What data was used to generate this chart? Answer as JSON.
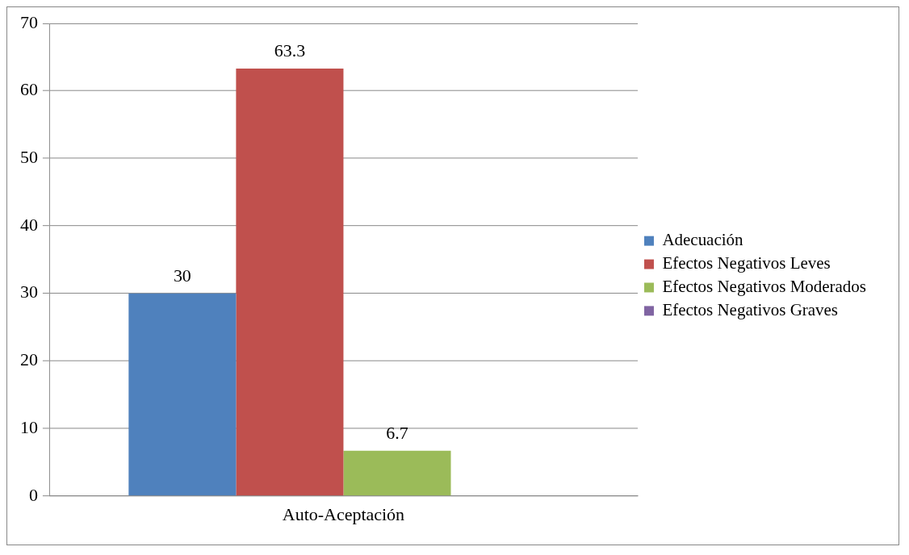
{
  "chart_data": {
    "type": "bar",
    "categories": [
      "Auto-Aceptación"
    ],
    "series": [
      {
        "name": "Adecuación",
        "color": "#4f81bd",
        "values": [
          30
        ],
        "value_labels": [
          "30"
        ]
      },
      {
        "name": "Efectos Negativos Leves",
        "color": "#c0504d",
        "values": [
          63.3
        ],
        "value_labels": [
          "63.3"
        ]
      },
      {
        "name": "Efectos Negativos Moderados",
        "color": "#9bbb59",
        "values": [
          6.7
        ],
        "value_labels": [
          "6.7"
        ]
      },
      {
        "name": "Efectos Negativos Graves",
        "color": "#8064a2",
        "values": [
          0
        ],
        "value_labels": [
          null
        ]
      }
    ],
    "ylim": [
      0,
      70
    ],
    "yticks": [
      0,
      10,
      20,
      30,
      40,
      50,
      60,
      70
    ],
    "grid": "y",
    "legend": "right"
  }
}
